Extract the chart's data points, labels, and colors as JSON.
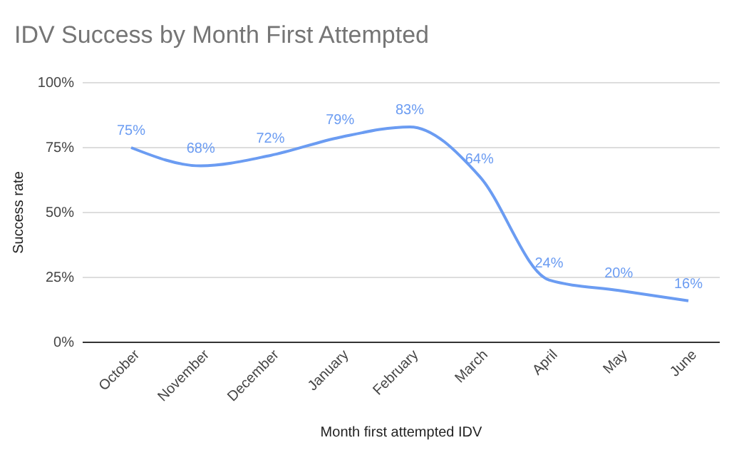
{
  "chart_data": {
    "type": "line",
    "title": "IDV Success by Month First Attempted",
    "xlabel": "Month first attempted IDV",
    "ylabel": "Success rate",
    "categories": [
      "October",
      "November",
      "December",
      "January",
      "February",
      "March",
      "April",
      "May",
      "June"
    ],
    "series": [
      {
        "color": "#6b9cf2",
        "values": [
          75,
          68,
          72,
          79,
          83,
          64,
          24,
          20,
          16
        ],
        "value_labels": [
          "75%",
          "68%",
          "72%",
          "79%",
          "83%",
          "64%",
          "24%",
          "20%",
          "16%"
        ]
      }
    ],
    "ylim": [
      0,
      100
    ],
    "yticks": [
      {
        "value": 0,
        "label": "0%"
      },
      {
        "value": 25,
        "label": "25%"
      },
      {
        "value": 50,
        "label": "50%"
      },
      {
        "value": 75,
        "label": "75%"
      },
      {
        "value": 100,
        "label": "100%"
      }
    ],
    "grid": "y",
    "marker": "none",
    "line_style": "solid"
  }
}
